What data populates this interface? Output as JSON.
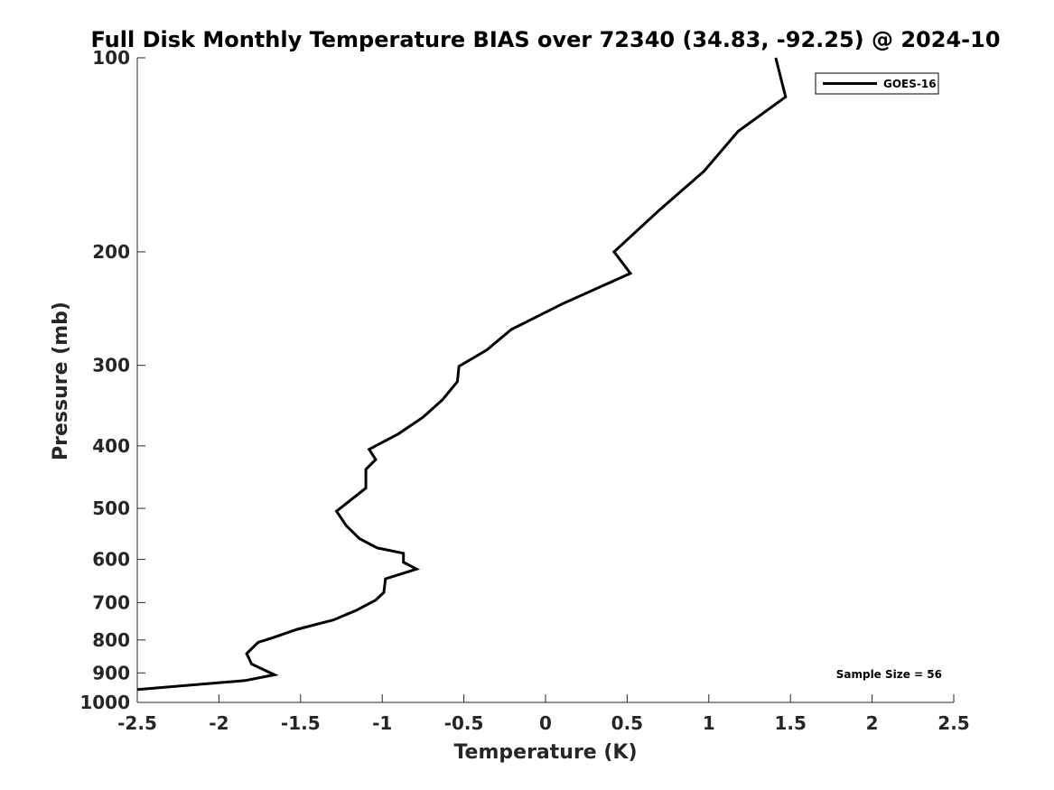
{
  "chart_data": {
    "type": "line",
    "title": "Full Disk Monthly Temperature BIAS over 72340 (34.83, -92.25) @ 2024-10",
    "xlabel": "Temperature (K)",
    "ylabel": "Pressure (mb)",
    "xlim": [
      -2.5,
      2.5
    ],
    "ylim": [
      100,
      1000
    ],
    "yscale": "log",
    "yreversed": true,
    "xticks": [
      -2.5,
      -2,
      -1.5,
      -1,
      -0.5,
      0,
      0.5,
      1,
      1.5,
      2,
      2.5
    ],
    "xtick_labels": [
      "-2.5",
      "-2",
      "-1.5",
      "-1",
      "-0.5",
      "0",
      "0.5",
      "1",
      "1.5",
      "2",
      "2.5"
    ],
    "yticks": [
      100,
      200,
      300,
      400,
      500,
      600,
      700,
      800,
      900,
      1000
    ],
    "ytick_labels": [
      "100",
      "200",
      "300",
      "400",
      "500",
      "600",
      "700",
      "800",
      "900",
      "1000"
    ],
    "grid": false,
    "legend_position": "top-right",
    "series": [
      {
        "name": "GOES-16",
        "color": "#000000",
        "x": [
          1.41,
          1.47,
          1.18,
          0.97,
          0.7,
          0.42,
          0.52,
          0.1,
          -0.21,
          -0.36,
          -0.53,
          -0.54,
          -0.63,
          -0.75,
          -0.9,
          -1.08,
          -1.04,
          -1.1,
          -1.1,
          -1.28,
          -1.22,
          -1.14,
          -1.03,
          -0.87,
          -0.87,
          -0.79,
          -0.98,
          -0.99,
          -1.04,
          -1.16,
          -1.3,
          -1.52,
          -1.68,
          -1.76,
          -1.83,
          -1.8,
          -1.66,
          -1.84,
          -2.5
        ],
        "y": [
          100,
          115,
          130,
          150,
          172,
          200,
          216,
          241,
          264,
          284,
          301,
          318,
          339,
          361,
          383,
          405,
          420,
          435,
          465,
          505,
          532,
          557,
          576,
          587,
          606,
          621,
          643,
          675,
          694,
          720,
          745,
          770,
          795,
          807,
          840,
          872,
          906,
          925,
          955
        ]
      }
    ],
    "annotations": [
      {
        "text": "Sample Size = 56"
      }
    ]
  }
}
